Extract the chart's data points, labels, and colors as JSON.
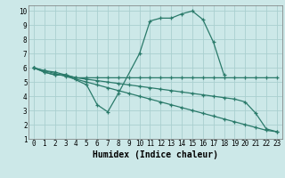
{
  "xlabel": "Humidex (Indice chaleur)",
  "background_color": "#cce8e8",
  "grid_color": "#aacfcf",
  "line_color": "#2a7a6a",
  "xlim": [
    -0.5,
    23.5
  ],
  "ylim": [
    1,
    10.4
  ],
  "xticks": [
    0,
    1,
    2,
    3,
    4,
    5,
    6,
    7,
    8,
    9,
    10,
    11,
    12,
    13,
    14,
    15,
    16,
    17,
    18,
    19,
    20,
    21,
    22,
    23
  ],
  "yticks": [
    1,
    2,
    3,
    4,
    5,
    6,
    7,
    8,
    9,
    10
  ],
  "lines": [
    {
      "x": [
        0,
        1,
        2,
        3,
        5,
        6,
        7,
        8,
        10,
        11,
        12,
        13,
        14,
        15,
        16,
        17,
        18
      ],
      "y": [
        6.0,
        5.7,
        5.5,
        5.5,
        4.8,
        3.4,
        2.9,
        4.2,
        7.0,
        9.3,
        9.5,
        9.5,
        9.8,
        10.0,
        9.4,
        7.8,
        5.5
      ]
    },
    {
      "x": [
        0,
        1,
        2,
        3,
        4,
        5,
        6,
        7,
        8,
        9,
        10,
        11,
        12,
        13,
        14,
        15,
        16,
        17,
        18,
        19,
        20,
        21,
        22,
        23
      ],
      "y": [
        6.0,
        5.7,
        5.5,
        5.5,
        5.3,
        5.3,
        5.3,
        5.3,
        5.3,
        5.3,
        5.3,
        5.3,
        5.3,
        5.3,
        5.3,
        5.3,
        5.3,
        5.3,
        5.3,
        5.3,
        5.3,
        5.3,
        5.3,
        5.3
      ]
    },
    {
      "x": [
        0,
        1,
        2,
        3,
        4,
        5,
        6,
        7,
        8,
        9,
        10,
        11,
        12,
        13,
        14,
        15,
        16,
        17,
        18,
        19,
        20,
        21,
        22,
        23
      ],
      "y": [
        6.0,
        5.8,
        5.7,
        5.5,
        5.3,
        5.2,
        5.1,
        5.0,
        4.9,
        4.8,
        4.7,
        4.6,
        4.5,
        4.4,
        4.3,
        4.2,
        4.1,
        4.0,
        3.9,
        3.8,
        3.6,
        2.8,
        1.7,
        1.5
      ]
    },
    {
      "x": [
        0,
        1,
        2,
        3,
        4,
        5,
        6,
        7,
        8,
        9,
        10,
        11,
        12,
        13,
        14,
        15,
        16,
        17,
        18,
        19,
        20,
        21,
        22,
        23
      ],
      "y": [
        6.0,
        5.8,
        5.6,
        5.4,
        5.2,
        5.0,
        4.8,
        4.6,
        4.4,
        4.2,
        4.0,
        3.8,
        3.6,
        3.4,
        3.2,
        3.0,
        2.8,
        2.6,
        2.4,
        2.2,
        2.0,
        1.8,
        1.6,
        1.5
      ]
    }
  ],
  "xlabel_fontsize": 7,
  "tick_fontsize": 5.5
}
